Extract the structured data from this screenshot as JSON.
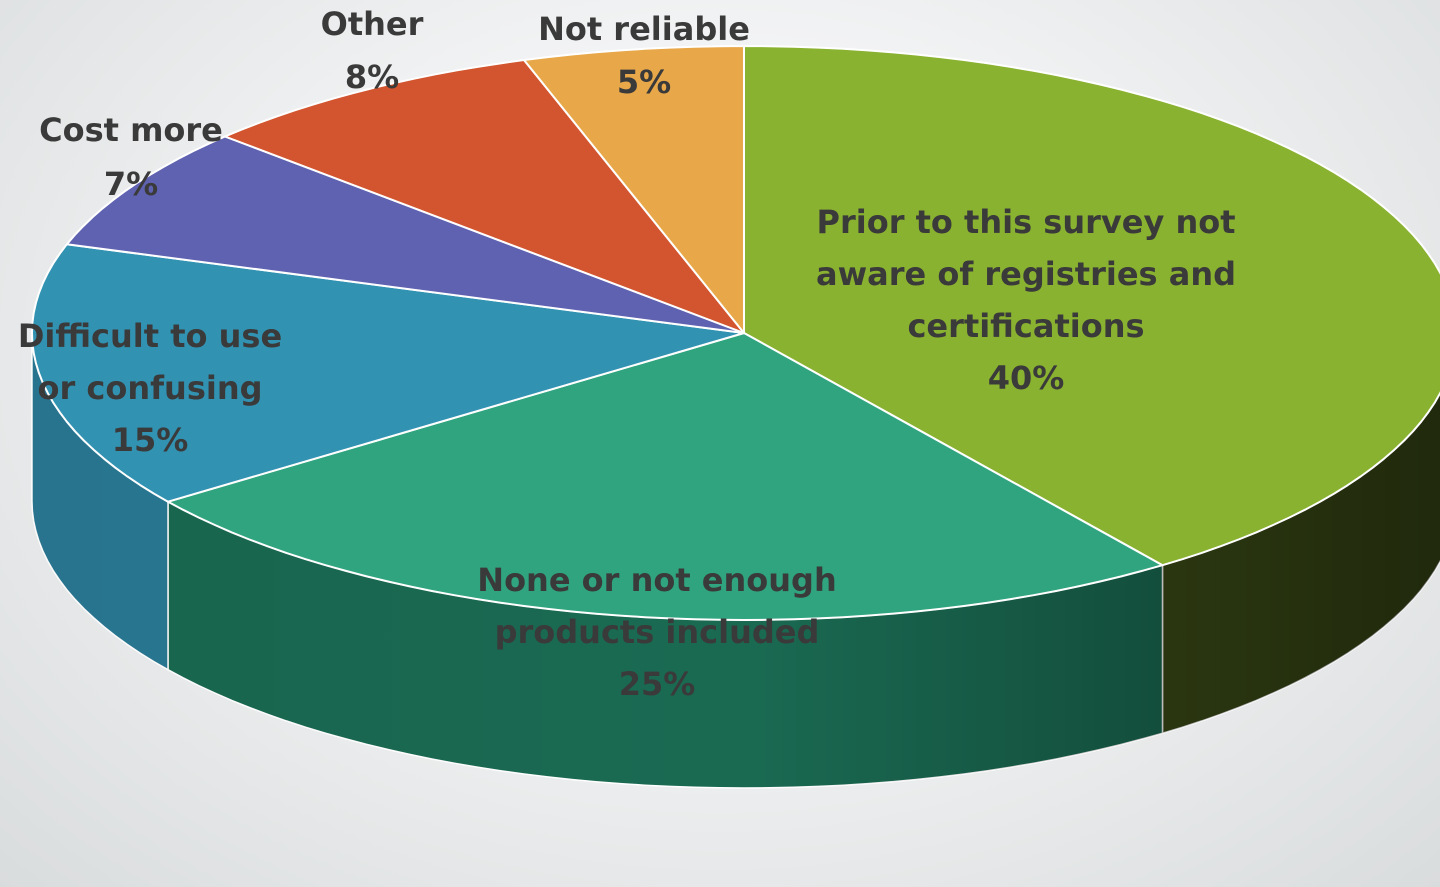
{
  "chart_data": {
    "type": "pie",
    "title": "",
    "legend": "none",
    "start_angle_deg": 0,
    "direction": "clockwise",
    "slices": [
      {
        "label": "Prior to this survey  not aware of registries and certifications",
        "label_lines": [
          "Prior to this survey  not",
          "aware of registries and",
          "certifications"
        ],
        "value": 40,
        "value_label": "40%",
        "color": "#8ab231",
        "side_color": "#3a4a16"
      },
      {
        "label": "None or not enough products included",
        "label_lines": [
          "None or not enough",
          "products included"
        ],
        "value": 25,
        "value_label": "25%",
        "color": "#30a47f",
        "side_color": "#1a6a52"
      },
      {
        "label": "Difficult to use or confusing",
        "label_lines": [
          "Difficult to use",
          "or confusing"
        ],
        "value": 15,
        "value_label": "15%",
        "color": "#3292b2",
        "side_color": "#2a7a96"
      },
      {
        "label": "Cost more",
        "label_lines": [
          "Cost more"
        ],
        "value": 7,
        "value_label": "7%",
        "color": "#5f62b1",
        "side_color": "#454890"
      },
      {
        "label": "Other",
        "label_lines": [
          "Other"
        ],
        "value": 8,
        "value_label": "8%",
        "color": "#d2552f",
        "side_color": "#9a3d22"
      },
      {
        "label": "Not reliable",
        "label_lines": [
          "Not reliable"
        ],
        "value": 5,
        "value_label": "5%",
        "color": "#e8a84a",
        "side_color": "#b07c32"
      }
    ]
  }
}
